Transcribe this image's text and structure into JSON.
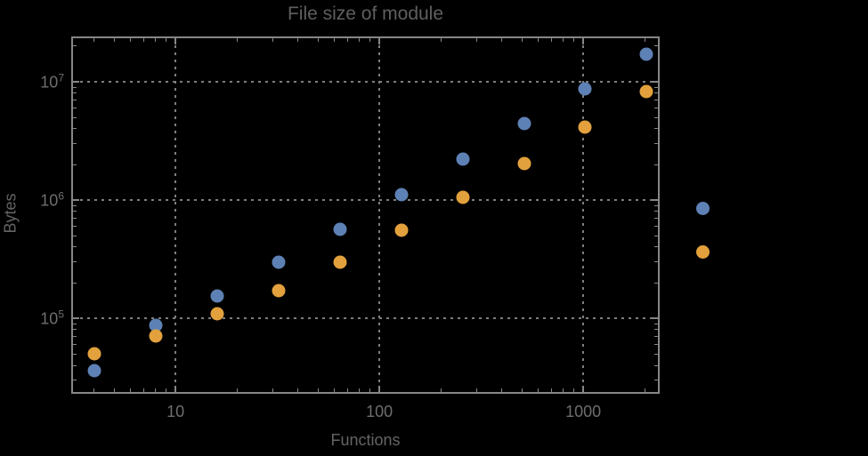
{
  "chart_data": {
    "type": "scatter",
    "title": "File size of module",
    "xlabel": "Functions",
    "ylabel": "Bytes",
    "x_scale": "log",
    "y_scale": "log",
    "grid": "dotted",
    "x_range": [
      3.08,
      2372
    ],
    "y_range": [
      23000,
      24180000
    ],
    "x_ticks": [
      10,
      100,
      1000
    ],
    "x_tick_labels": [
      "10",
      "100",
      "1000"
    ],
    "y_ticks": [
      100000,
      1000000,
      10000000
    ],
    "y_tick_labels": [
      {
        "base": "10",
        "exp": "5"
      },
      {
        "base": "10",
        "exp": "6"
      },
      {
        "base": "10",
        "exp": "7"
      }
    ],
    "x": [
      4,
      8,
      16,
      32,
      64,
      128,
      256,
      512,
      1024,
      2048
    ],
    "series": [
      {
        "name": "series-1",
        "color": "#5E81B5",
        "values": [
          36000,
          87000,
          155000,
          300000,
          570000,
          1110000,
          2220000,
          4400000,
          8700000,
          17100000
        ]
      },
      {
        "name": "series-2",
        "color": "#E2A13C",
        "values": [
          50000,
          71000,
          110000,
          171000,
          300000,
          555000,
          1050000,
          2030000,
          4140000,
          8270000
        ]
      }
    ],
    "legend": {
      "position": "outside-right",
      "markers": [
        {
          "name": "legend-marker-1",
          "color": "#5E81B5",
          "label": ""
        },
        {
          "name": "legend-marker-2",
          "color": "#E2A13C",
          "label": ""
        }
      ]
    }
  },
  "colors": {
    "background": "#000000",
    "frame": "#868686",
    "gridline": "#7e7e7e",
    "title_text": "#5f5f5f",
    "tick_text": "#6e6e6e",
    "axis_label_text": "#646464"
  }
}
